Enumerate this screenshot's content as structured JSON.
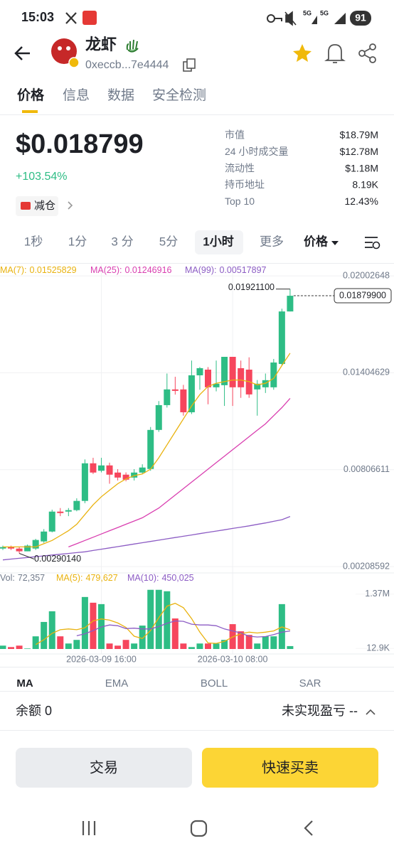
{
  "status_bar": {
    "time": "15:03",
    "network": [
      "5G",
      "5G"
    ],
    "battery": "91"
  },
  "header": {
    "name": "龙虾",
    "address": "0xeccb...7e4444"
  },
  "tabs": [
    "价格",
    "信息",
    "数据",
    "安全检测"
  ],
  "price": {
    "value": "$0.018799",
    "change": "+103.54%",
    "tag": "减仓"
  },
  "stats": [
    {
      "label": "市值",
      "value": "$18.79M"
    },
    {
      "label": "24 小时成交量",
      "value": "$12.78M"
    },
    {
      "label": "流动性",
      "value": "$1.18M"
    },
    {
      "label": "持币地址",
      "value": "8.19K"
    },
    {
      "label": "Top 10",
      "value": "12.43%"
    }
  ],
  "timeframes": [
    "1秒",
    "1分",
    "3 分",
    "5分",
    "1小时",
    "更多",
    "价格"
  ],
  "chart_data": {
    "type": "candlestick",
    "categories": [
      null,
      null,
      null,
      null,
      null,
      null,
      null,
      null,
      null,
      null,
      null,
      null,
      "2026-03-09 16:00",
      null,
      null,
      null,
      null,
      null,
      null,
      null,
      null,
      null,
      null,
      null,
      null,
      null,
      null,
      null,
      "2026-03-10 08:00",
      null,
      null,
      null,
      null,
      null,
      null,
      null
    ],
    "open": [
      0.0032,
      0.00329,
      0.0032,
      0.00303,
      0.0032,
      0.00364,
      0.00425,
      0.00548,
      0.00548,
      0.00557,
      0.00614,
      0.00846,
      0.008,
      0.00833,
      0.00789,
      0.00776,
      0.00758,
      0.00789,
      0.00811,
      0.01052,
      0.01205,
      0.01302,
      0.01302,
      0.01161,
      0.01389,
      0.01424,
      0.01315,
      0.01328,
      0.01503,
      0.01433,
      0.01424,
      0.01302,
      0.01315,
      0.01315,
      0.01459,
      0.01783
    ],
    "high": [
      0.00338,
      0.00338,
      0.00329,
      0.00345,
      0.0038,
      0.0044,
      0.0056,
      0.0057,
      0.0057,
      0.0063,
      0.0087,
      0.0088,
      0.0088,
      0.0085,
      0.0081,
      0.0079,
      0.0081,
      0.0084,
      0.0107,
      0.0123,
      0.014,
      0.0138,
      0.0133,
      0.0148,
      0.0144,
      0.0144,
      0.0148,
      0.01503,
      0.01503,
      0.0148,
      0.015,
      0.0136,
      0.014,
      0.0149,
      0.018,
      0.019211
    ],
    "low": [
      0.00311,
      0.00311,
      0.0029014,
      0.00303,
      0.00311,
      0.00355,
      0.0042,
      0.0052,
      0.0052,
      0.0055,
      0.006,
      0.0078,
      0.0079,
      0.0072,
      0.0074,
      0.00735,
      0.0074,
      0.0078,
      0.008,
      0.0104,
      0.0119,
      0.0127,
      0.0114,
      0.0115,
      0.013,
      0.0121,
      0.0129,
      0.012,
      0.012,
      0.0125,
      0.0125,
      0.0114,
      0.0128,
      0.013,
      0.0145,
      0.01783
    ],
    "close": [
      0.00329,
      0.0032,
      0.00303,
      0.00338,
      0.00373,
      0.00425,
      0.00548,
      0.00539,
      0.00557,
      0.00614,
      0.00846,
      0.00789,
      0.00833,
      0.00776,
      0.00758,
      0.00745,
      0.00789,
      0.0082,
      0.01052,
      0.01205,
      0.01302,
      0.01293,
      0.01161,
      0.01389,
      0.01433,
      0.01315,
      0.01337,
      0.01503,
      0.01315,
      0.01315,
      0.01271,
      0.01337,
      0.01359,
      0.01468,
      0.01783,
      0.018799
    ],
    "up_color": "#2ebd85",
    "down_color": "#f6465d",
    "ylim": [
      0.00174,
      0.0206
    ],
    "yticks": [
      0.02002648,
      0.01404629,
      0.00806611,
      0.00208592
    ],
    "grid": true,
    "annotations": {
      "high": "0.01921100",
      "low": "0.00290140",
      "last": "0.01879900"
    },
    "series": [
      {
        "name": "MA(7):",
        "color": "#e9b20e",
        "values": [
          0.0033,
          0.0033,
          0.0033,
          0.0033,
          0.0033,
          0.0035,
          0.0037,
          0.004,
          0.0043,
          0.0047,
          0.0053,
          0.0059,
          0.0064,
          0.0068,
          0.0072,
          0.0075,
          0.0077,
          0.0078,
          0.0081,
          0.0088,
          0.0096,
          0.0104,
          0.0112,
          0.012,
          0.0127,
          0.0132,
          0.0134,
          0.0135,
          0.0136,
          0.0136,
          0.0135,
          0.0133,
          0.0134,
          0.0137,
          0.0145,
          0.01525829
        ]
      },
      {
        "name": "MA(25):",
        "color": "#d93fb0",
        "values": [
          null,
          null,
          null,
          null,
          null,
          null,
          null,
          null,
          0.0033,
          0.0035,
          0.0037,
          0.0039,
          0.0041,
          0.0043,
          0.0045,
          0.0047,
          0.0049,
          0.0051,
          0.0054,
          0.0057,
          0.0061,
          0.0065,
          0.0069,
          0.0073,
          0.0077,
          0.0081,
          0.0085,
          0.0089,
          0.0093,
          0.0097,
          0.0101,
          0.0105,
          0.0109,
          0.0114,
          0.0119,
          0.01246916
        ]
      },
      {
        "name": "MA(99):",
        "color": "#8c5cc4",
        "values": [
          0.0025,
          0.00255,
          0.0026,
          0.00265,
          0.0027,
          0.00275,
          0.0028,
          0.00285,
          0.0029,
          0.00295,
          0.003,
          0.00308,
          0.00316,
          0.00324,
          0.00332,
          0.0034,
          0.00348,
          0.00356,
          0.00364,
          0.00372,
          0.0038,
          0.00388,
          0.00396,
          0.00404,
          0.00412,
          0.0042,
          0.00428,
          0.00436,
          0.00444,
          0.00452,
          0.0046,
          0.00469,
          0.00478,
          0.00488,
          0.00498,
          0.00517897
        ]
      }
    ],
    "volume": {
      "title": "Vol:",
      "label": "72,357",
      "values": [
        84000,
        48000,
        84000,
        12500,
        316000,
        675000,
        941000,
        316000,
        137000,
        227000,
        1298000,
        1155000,
        1120000,
        137000,
        84000,
        227000,
        137000,
        584000,
        1477000,
        1477000,
        1441000,
        762000,
        137000,
        48000,
        137000,
        137000,
        137000,
        227000,
        620000,
        441000,
        352000,
        137000,
        316000,
        316000,
        1120000,
        72357
      ],
      "ylim": [
        0,
        1650000
      ],
      "yticks": [
        {
          "value": 12900,
          "label": "12.9K"
        },
        {
          "value": 1370000,
          "label": "1.37M"
        }
      ],
      "series": [
        {
          "name": "MA(5):",
          "color": "#e9b20e",
          "label": "479,627",
          "values": [
            null,
            null,
            null,
            null,
            110000,
            230000,
            390000,
            480000,
            500000,
            480000,
            530000,
            700000,
            750000,
            720000,
            650000,
            540000,
            320000,
            260000,
            460000,
            780000,
            1070000,
            1140000,
            1030000,
            760000,
            420000,
            150000,
            140000,
            190000,
            300000,
            380000,
            420000,
            400000,
            420000,
            450000,
            550000,
            479627
          ]
        },
        {
          "name": "MA(10):",
          "color": "#8c5cc4",
          "label": "450,025",
          "values": [
            null,
            null,
            null,
            null,
            null,
            null,
            null,
            null,
            null,
            330000,
            380000,
            460000,
            550000,
            600000,
            580000,
            510000,
            520000,
            500000,
            500000,
            560000,
            640000,
            700000,
            690000,
            620000,
            600000,
            600000,
            580000,
            500000,
            450000,
            400000,
            320000,
            300000,
            310000,
            360000,
            420000,
            450025
          ]
        }
      ]
    }
  },
  "indicators": [
    "MA",
    "EMA",
    "BOLL",
    "SAR"
  ],
  "balance": "余额 0",
  "pnl": "未实现盈亏 --",
  "buttons": [
    "交易",
    "快速买卖"
  ]
}
